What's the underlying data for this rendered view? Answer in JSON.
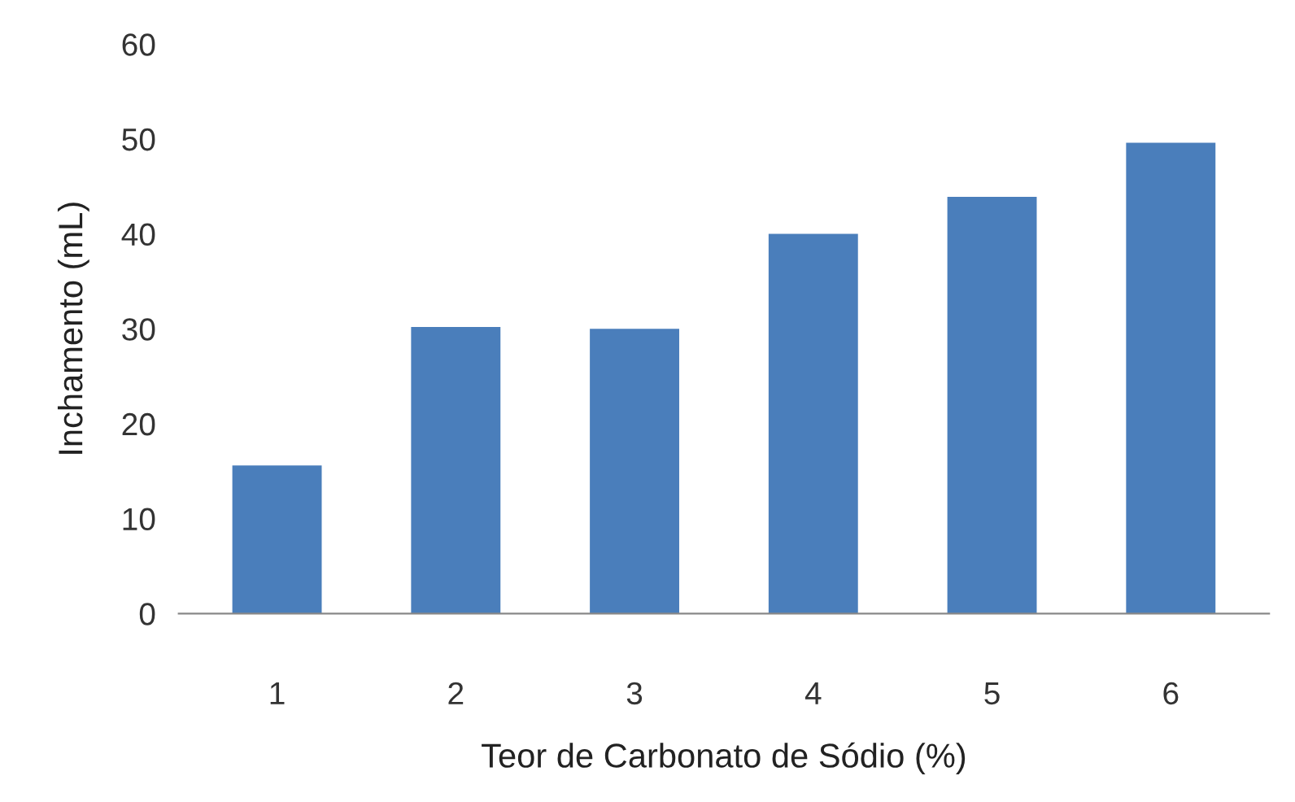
{
  "chart_data": {
    "type": "bar",
    "xlabel": "Teor de Carbonato de Sódio (%)",
    "ylabel": "Inchamento (mL)",
    "categories": [
      "1",
      "2",
      "3",
      "4",
      "5",
      "6"
    ],
    "values": [
      15.6,
      30.2,
      30.0,
      40.0,
      43.9,
      49.6
    ],
    "color": "#4a7ebb",
    "ylim": [
      0,
      60
    ],
    "yticks": [
      0,
      10,
      20,
      30,
      40,
      50,
      60
    ],
    "grid": false,
    "legend": false
  }
}
